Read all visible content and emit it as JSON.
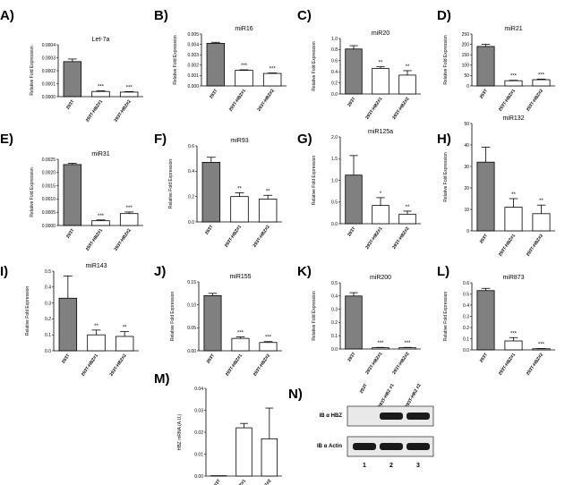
{
  "colors": {
    "filled": "#808080",
    "open": "#ffffff",
    "stroke": "#000000",
    "band": "#1a1a1a"
  },
  "chart_data": [
    {
      "id": "A",
      "label": "A)",
      "type": "bar",
      "title": "Let-7a",
      "ylabel": "Relative Fold Expression",
      "categories": [
        "293T",
        "293T-HBZ#1",
        "293T-HBZ#2"
      ],
      "values": [
        0.00027,
        4e-05,
        3.5e-05
      ],
      "errors": [
        2e-05,
        5e-06,
        4e-06
      ],
      "sig": [
        "",
        "***",
        "***"
      ],
      "fill": [
        "filled",
        "open",
        "open"
      ],
      "ylim": [
        0,
        0.0004
      ],
      "ticks": [
        0,
        0.0001,
        0.0002,
        0.0003,
        0.0004
      ],
      "tick_labels": [
        "0.0000",
        "0.0001",
        "0.0002",
        "0.0003",
        "0.0004"
      ]
    },
    {
      "id": "B",
      "label": "B)",
      "type": "bar",
      "title": "miR16",
      "ylabel": "Relative Fold Expression",
      "categories": [
        "293T",
        "293T-HBZ#1",
        "293T-HBZ#2"
      ],
      "values": [
        0.0041,
        0.0015,
        0.0012
      ],
      "errors": [
        0.0001,
        5e-05,
        5e-05
      ],
      "sig": [
        "",
        "***",
        "***"
      ],
      "fill": [
        "filled",
        "open",
        "open"
      ],
      "ylim": [
        0,
        0.005
      ],
      "ticks": [
        0,
        0.001,
        0.002,
        0.003,
        0.004,
        0.005
      ],
      "tick_labels": [
        "0.000",
        "0.001",
        "0.002",
        "0.003",
        "0.004",
        "0.005"
      ]
    },
    {
      "id": "C",
      "label": "C)",
      "type": "bar",
      "title": "miR20",
      "ylabel": "Relative Fold Expression",
      "categories": [
        "293T",
        "293T-HBZ#1",
        "293T-HBZ#2"
      ],
      "values": [
        0.81,
        0.46,
        0.34
      ],
      "errors": [
        0.06,
        0.03,
        0.08
      ],
      "sig": [
        "",
        "**",
        "**"
      ],
      "fill": [
        "filled",
        "open",
        "open"
      ],
      "ylim": [
        0,
        1.0
      ],
      "ticks": [
        0,
        0.2,
        0.4,
        0.6,
        0.8,
        1.0
      ],
      "tick_labels": [
        "0.0",
        "0.2",
        "0.4",
        "0.6",
        "0.8",
        "1.0"
      ]
    },
    {
      "id": "D",
      "label": "D)",
      "type": "bar",
      "title": "miR21",
      "ylabel": "Relative Fold Expression",
      "categories": [
        "293T",
        "293T-HBZ#1",
        "293T-HBZ#2"
      ],
      "values": [
        190,
        25,
        30
      ],
      "errors": [
        10,
        2,
        3
      ],
      "sig": [
        "",
        "***",
        "***"
      ],
      "fill": [
        "filled",
        "open",
        "open"
      ],
      "ylim": [
        0,
        250
      ],
      "ticks": [
        0,
        50,
        100,
        150,
        200,
        250
      ],
      "tick_labels": [
        "0",
        "50",
        "100",
        "150",
        "200",
        "250"
      ]
    },
    {
      "id": "E",
      "label": "E)",
      "type": "bar",
      "title": "miR31",
      "ylabel": "Relative Fold Expression",
      "categories": [
        "293T",
        "293T-HBZ#1",
        "293T-HBZ#2"
      ],
      "values": [
        0.0023,
        0.00018,
        0.00045
      ],
      "errors": [
        5e-05,
        3e-05,
        6e-05
      ],
      "sig": [
        "",
        "***",
        "***"
      ],
      "fill": [
        "filled",
        "open",
        "open"
      ],
      "ylim": [
        0,
        0.0025
      ],
      "ticks": [
        0,
        0.0005,
        0.001,
        0.0015,
        0.002,
        0.0025
      ],
      "tick_labels": [
        "0.0000",
        "0.0005",
        "0.0010",
        "0.0015",
        "0.0020",
        "0.0025"
      ]
    },
    {
      "id": "F",
      "label": "F)",
      "type": "bar",
      "title": "miR93",
      "ylabel": "Relative Fold Expression",
      "categories": [
        "293T",
        "293T-HBZ#1",
        "293T-HBZ#2"
      ],
      "values": [
        0.47,
        0.2,
        0.18
      ],
      "errors": [
        0.04,
        0.03,
        0.03
      ],
      "sig": [
        "",
        "**",
        "**"
      ],
      "fill": [
        "filled",
        "open",
        "open"
      ],
      "ylim": [
        0,
        0.6
      ],
      "ticks": [
        0,
        0.2,
        0.4,
        0.6
      ],
      "tick_labels": [
        "0.0",
        "0.2",
        "0.4",
        "0.6"
      ]
    },
    {
      "id": "G",
      "label": "G)",
      "type": "bar",
      "title": "miR125a",
      "ylabel": "Relative Fold Expression",
      "categories": [
        "293T",
        "293T-HBZ#1",
        "293T-HBZ#2"
      ],
      "values": [
        1.12,
        0.42,
        0.22
      ],
      "errors": [
        0.45,
        0.18,
        0.07
      ],
      "sig": [
        "",
        "*",
        "**"
      ],
      "fill": [
        "filled",
        "open",
        "open"
      ],
      "ylim": [
        0,
        2.0
      ],
      "ticks": [
        0,
        0.5,
        1.0,
        1.5,
        2.0
      ],
      "tick_labels": [
        "0.0",
        "0.5",
        "1.0",
        "1.5",
        "2.0"
      ]
    },
    {
      "id": "H",
      "label": "H)",
      "type": "bar",
      "title": "miR132",
      "ylabel": "Relative Fold Expression",
      "categories": [
        "293T",
        "293T-HBZ#1",
        "293T-HBZ#2"
      ],
      "values": [
        32,
        11,
        8
      ],
      "errors": [
        7,
        4,
        4
      ],
      "sig": [
        "",
        "**",
        "**"
      ],
      "fill": [
        "filled",
        "open",
        "open"
      ],
      "ylim": [
        0,
        50
      ],
      "ticks": [
        0,
        10,
        20,
        30,
        40,
        50
      ],
      "tick_labels": [
        "0",
        "10",
        "20",
        "30",
        "40",
        "50"
      ]
    },
    {
      "id": "I",
      "label": "I)",
      "type": "bar",
      "title": "miR143",
      "ylabel": "Relative Fold Expression",
      "categories": [
        "293T",
        "293T-HBZ#1",
        "293T-HBZ#2"
      ],
      "values": [
        0.33,
        0.1,
        0.09
      ],
      "errors": [
        0.14,
        0.03,
        0.03
      ],
      "sig": [
        "",
        "**",
        "**"
      ],
      "fill": [
        "filled",
        "open",
        "open"
      ],
      "ylim": [
        0,
        0.5
      ],
      "ticks": [
        0,
        0.1,
        0.2,
        0.3,
        0.4,
        0.5
      ],
      "tick_labels": [
        "0.0",
        "0.1",
        "0.2",
        "0.3",
        "0.4",
        "0.5"
      ]
    },
    {
      "id": "J",
      "label": "J)",
      "type": "bar",
      "title": "miR155",
      "ylabel": "Relative Fold Expression",
      "categories": [
        "293T",
        "293T-HBZ#1",
        "293T-HBZ#2"
      ],
      "values": [
        0.12,
        0.027,
        0.018
      ],
      "errors": [
        0.005,
        0.003,
        0.002
      ],
      "sig": [
        "",
        "***",
        "***"
      ],
      "fill": [
        "filled",
        "open",
        "open"
      ],
      "ylim": [
        0,
        0.15
      ],
      "ticks": [
        0,
        0.05,
        0.1,
        0.15
      ],
      "tick_labels": [
        "0.00",
        "0.05",
        "0.10",
        "0.15"
      ]
    },
    {
      "id": "K",
      "label": "K)",
      "type": "bar",
      "title": "miR200",
      "ylabel": "Relative Fold Expression",
      "categories": [
        "293T",
        "293T-HBZ#1",
        "293T-HBZ#2"
      ],
      "values": [
        0.4,
        0.01,
        0.01
      ],
      "errors": [
        0.025,
        0.002,
        0.002
      ],
      "sig": [
        "",
        "***",
        "***"
      ],
      "fill": [
        "filled",
        "open",
        "open"
      ],
      "ylim": [
        0,
        0.5
      ],
      "ticks": [
        0,
        0.1,
        0.2,
        0.3,
        0.4,
        0.5
      ],
      "tick_labels": [
        "0.0",
        "0.1",
        "0.2",
        "0.3",
        "0.4",
        "0.5"
      ]
    },
    {
      "id": "L",
      "label": "L)",
      "type": "bar",
      "title": "miR873",
      "ylabel": "Relative Fold Expression",
      "categories": [
        "293T",
        "293T-HBZ#1",
        "293T-HBZ#2"
      ],
      "values": [
        0.53,
        0.08,
        0.01
      ],
      "errors": [
        0.02,
        0.03,
        0.002
      ],
      "sig": [
        "",
        "***",
        "***"
      ],
      "fill": [
        "filled",
        "open",
        "open"
      ],
      "ylim": [
        0,
        0.6
      ],
      "ticks": [
        0,
        0.1,
        0.2,
        0.3,
        0.4,
        0.5,
        0.6
      ],
      "tick_labels": [
        "0.0",
        "0.1",
        "0.2",
        "0.3",
        "0.4",
        "0.5",
        "0.6"
      ]
    },
    {
      "id": "M",
      "label": "M)",
      "type": "bar",
      "title": "",
      "ylabel": "HBZ mRNA (A.U.)",
      "categories": [
        "293T",
        "293T-HBZ#1",
        "293T-HBZ#2"
      ],
      "values": [
        0.0,
        0.022,
        0.017
      ],
      "errors": [
        0,
        0.002,
        0.014
      ],
      "sig": [
        "",
        "",
        ""
      ],
      "fill": [
        "open",
        "open",
        "open"
      ],
      "ylim": [
        0,
        0.04
      ],
      "ticks": [
        0,
        0.01,
        0.02,
        0.03,
        0.04
      ],
      "tick_labels": [
        "0.00",
        "0.01",
        "0.02",
        "0.03",
        "0.04"
      ]
    }
  ],
  "blot": {
    "label": "N)",
    "columns": [
      "293T",
      "293T-HBZ #1",
      "293T-HBZ #2"
    ],
    "rows": [
      "IB α HBZ",
      "IB α Actin"
    ],
    "lanes": [
      "1",
      "2",
      "3"
    ],
    "hbz_present": [
      0,
      1,
      1
    ],
    "actin_present": [
      1,
      1,
      1
    ]
  }
}
